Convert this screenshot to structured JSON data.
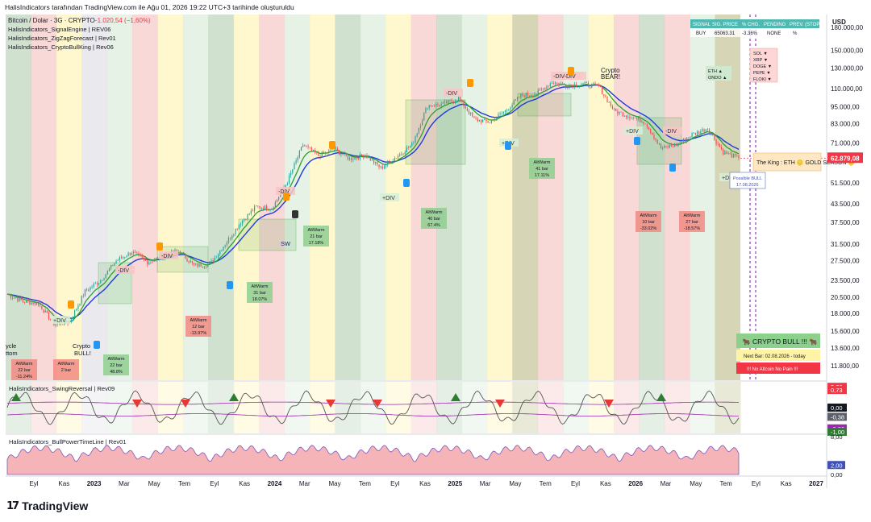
{
  "header": {
    "credit": "HalisIndicators tarafından TradingView.com ile Ağu 01, 2026 19:22 UTC+3 tarihinde oluşturuldu"
  },
  "legend": {
    "symbol": "Bitcoin / Dolar · 3G · CRYPTO",
    "change": "−1.020,54 (−1,60%)",
    "lines": [
      "HalisIndicators_SignalEngine | REV06",
      "HalisIndicators_ZigZagForecast | Rev01",
      "HalisIndicators_CryptoBullKing | Rev06"
    ]
  },
  "colors": {
    "bull": "#26a69a",
    "bear": "#ef5350",
    "brand": "#131722",
    "ma_blue": "#1e3bdb",
    "ma_green": "#2ca02c",
    "price_box": "#f23645",
    "usd_label": "#131722"
  },
  "price_axis": {
    "currency": "USD",
    "labels": [
      "180.000,00",
      "150.000,00",
      "130.000,00",
      "110.000,00",
      "95.000,00",
      "83.000,00",
      "71.000,00",
      "62.879,08",
      "51.500,00",
      "43.500,00",
      "37.500,00",
      "31.500,00",
      "27.500,00",
      "23.500,00",
      "20.500,00",
      "18.000,00",
      "15.600,00",
      "13.600,00",
      "11.800,00"
    ]
  },
  "time_axis": [
    "Eyl",
    "Kas",
    "2023",
    "Mar",
    "May",
    "Tem",
    "Eyl",
    "Kas",
    "2024",
    "Mar",
    "May",
    "Tem",
    "Eyl",
    "Kas",
    "2025",
    "Mar",
    "May",
    "Tem",
    "Eyl",
    "Kas",
    "2026",
    "Mar",
    "May",
    "Tem",
    "Eyl",
    "Kas",
    "2027"
  ],
  "signal_table": {
    "headers": [
      "SIGNAL",
      "SIG. PRICE",
      "% CHG.",
      "PENDING",
      "PREV. (STOP)"
    ],
    "row": [
      "BUY",
      "65063.31",
      "-3.36%",
      "NONE",
      "%"
    ]
  },
  "alt_list": [
    "SOL ▼",
    "XRP ▼",
    "DOGE ▼",
    "PEPE ▼",
    "FLOKI ▼"
  ],
  "eth_box": [
    "ETH ▲",
    "ONDO ▲"
  ],
  "king_box": "The King : ETH  🪙 GOLD SEASON 🪙",
  "possible_bull": [
    "Possible BULL",
    "17.08.2026"
  ],
  "bull_panel": [
    "🐂 CRYPTO BULL !!! 🐂",
    "Next Bar: 02.08.2026 - today",
    "!!! No Altcoin No Pain !!!"
  ],
  "annotations": {
    "div_labels": [
      "-DIV",
      "+DIV",
      "-DIV",
      "-DIV",
      "-DIV",
      "+DIV",
      "-DIV",
      "+DIV",
      "-DIV-DIV",
      "-DIV",
      "+DIV",
      "+DIV"
    ],
    "crypto_bull": [
      "Crypto",
      "BULL!"
    ],
    "crypto_bear": [
      "Crypto",
      "BEAR!"
    ],
    "cycle_bottom": [
      "ycle",
      "ttom"
    ],
    "sw": "SW"
  },
  "altwarm_boxes": [
    {
      "lines": [
        "AltWarm",
        "22 bar",
        "-11.24%"
      ],
      "tone": "red"
    },
    {
      "lines": [
        "AltWarm",
        "2 bar",
        ""
      ],
      "tone": "red"
    },
    {
      "lines": [
        "AltWarm",
        "22 bar",
        "48.8%"
      ],
      "tone": "green"
    },
    {
      "lines": [
        "AltWarm",
        "12 bar",
        "-13.97%"
      ],
      "tone": "red"
    },
    {
      "lines": [
        "AltWarm",
        "31 bar",
        "18.07%"
      ],
      "tone": "green"
    },
    {
      "lines": [
        "AltWarm",
        "21 bar",
        "17.18%"
      ],
      "tone": "green"
    },
    {
      "lines": [
        "AltWarm",
        "40 bar",
        "67.4%"
      ],
      "tone": "green"
    },
    {
      "lines": [
        "AltWarm",
        "41 bar",
        "17.11%"
      ],
      "tone": "green"
    },
    {
      "lines": [
        "AltWarm",
        "10 bar",
        "-33.02%"
      ],
      "tone": "red"
    },
    {
      "lines": [
        "AltWarm",
        "27 bar",
        "-18.57%"
      ],
      "tone": "red"
    }
  ],
  "panel1": {
    "title": "HalisIndicators_SwingReversal | Rev09",
    "axis_labels": [
      "0,86",
      "0,73",
      "0,00",
      "-0,38",
      "-0,86",
      "-1,00"
    ]
  },
  "panel2": {
    "title": "HalisIndicators_BullPowerTimeLine | Rev01",
    "axis_labels": [
      "8,00",
      "2,00",
      "0,00"
    ]
  },
  "footer": {
    "brand": "TradingView"
  },
  "chart_data": {
    "type": "candlestick",
    "title": "Bitcoin / Dolar · 3G · CRYPTO",
    "yscale": "log",
    "ylim": [
      10500,
      200000
    ],
    "x_range": [
      "Aug 2022",
      "Feb 2027"
    ],
    "last_price": 62879.08,
    "series": [
      {
        "name": "price",
        "points": [
          [
            "2022-08",
            21000
          ],
          [
            "2022-09",
            19800
          ],
          [
            "2022-10",
            19500
          ],
          [
            "2022-11",
            16500
          ],
          [
            "2022-12",
            16800
          ],
          [
            "2023-01",
            21500
          ],
          [
            "2023-02",
            23500
          ],
          [
            "2023-03",
            27500
          ],
          [
            "2023-04",
            29500
          ],
          [
            "2023-05",
            27200
          ],
          [
            "2023-06",
            28500
          ],
          [
            "2023-07",
            29800
          ],
          [
            "2023-08",
            26500
          ],
          [
            "2023-09",
            26700
          ],
          [
            "2023-10",
            31500
          ],
          [
            "2023-11",
            37500
          ],
          [
            "2023-12",
            42500
          ],
          [
            "2024-01",
            42000
          ],
          [
            "2024-02",
            52000
          ],
          [
            "2024-03",
            70000
          ],
          [
            "2024-04",
            64000
          ],
          [
            "2024-05",
            67500
          ],
          [
            "2024-06",
            62500
          ],
          [
            "2024-07",
            64500
          ],
          [
            "2024-08",
            58000
          ],
          [
            "2024-09",
            63500
          ],
          [
            "2024-10",
            70000
          ],
          [
            "2024-11",
            96000
          ],
          [
            "2024-12",
            97000
          ],
          [
            "2025-01",
            102000
          ],
          [
            "2025-02",
            86000
          ],
          [
            "2025-03",
            84000
          ],
          [
            "2025-04",
            92000
          ],
          [
            "2025-05",
            104000
          ],
          [
            "2025-06",
            106000
          ],
          [
            "2025-07",
            116000
          ],
          [
            "2025-08",
            113000
          ],
          [
            "2025-09",
            114000
          ],
          [
            "2025-10",
            112000
          ],
          [
            "2025-11",
            92000
          ],
          [
            "2025-12",
            88000
          ],
          [
            "2026-01",
            84000
          ],
          [
            "2026-02",
            68000
          ],
          [
            "2026-03",
            70000
          ],
          [
            "2026-04",
            76000
          ],
          [
            "2026-05",
            80000
          ],
          [
            "2026-06",
            66000
          ],
          [
            "2026-07",
            62879.08
          ]
        ]
      }
    ]
  }
}
